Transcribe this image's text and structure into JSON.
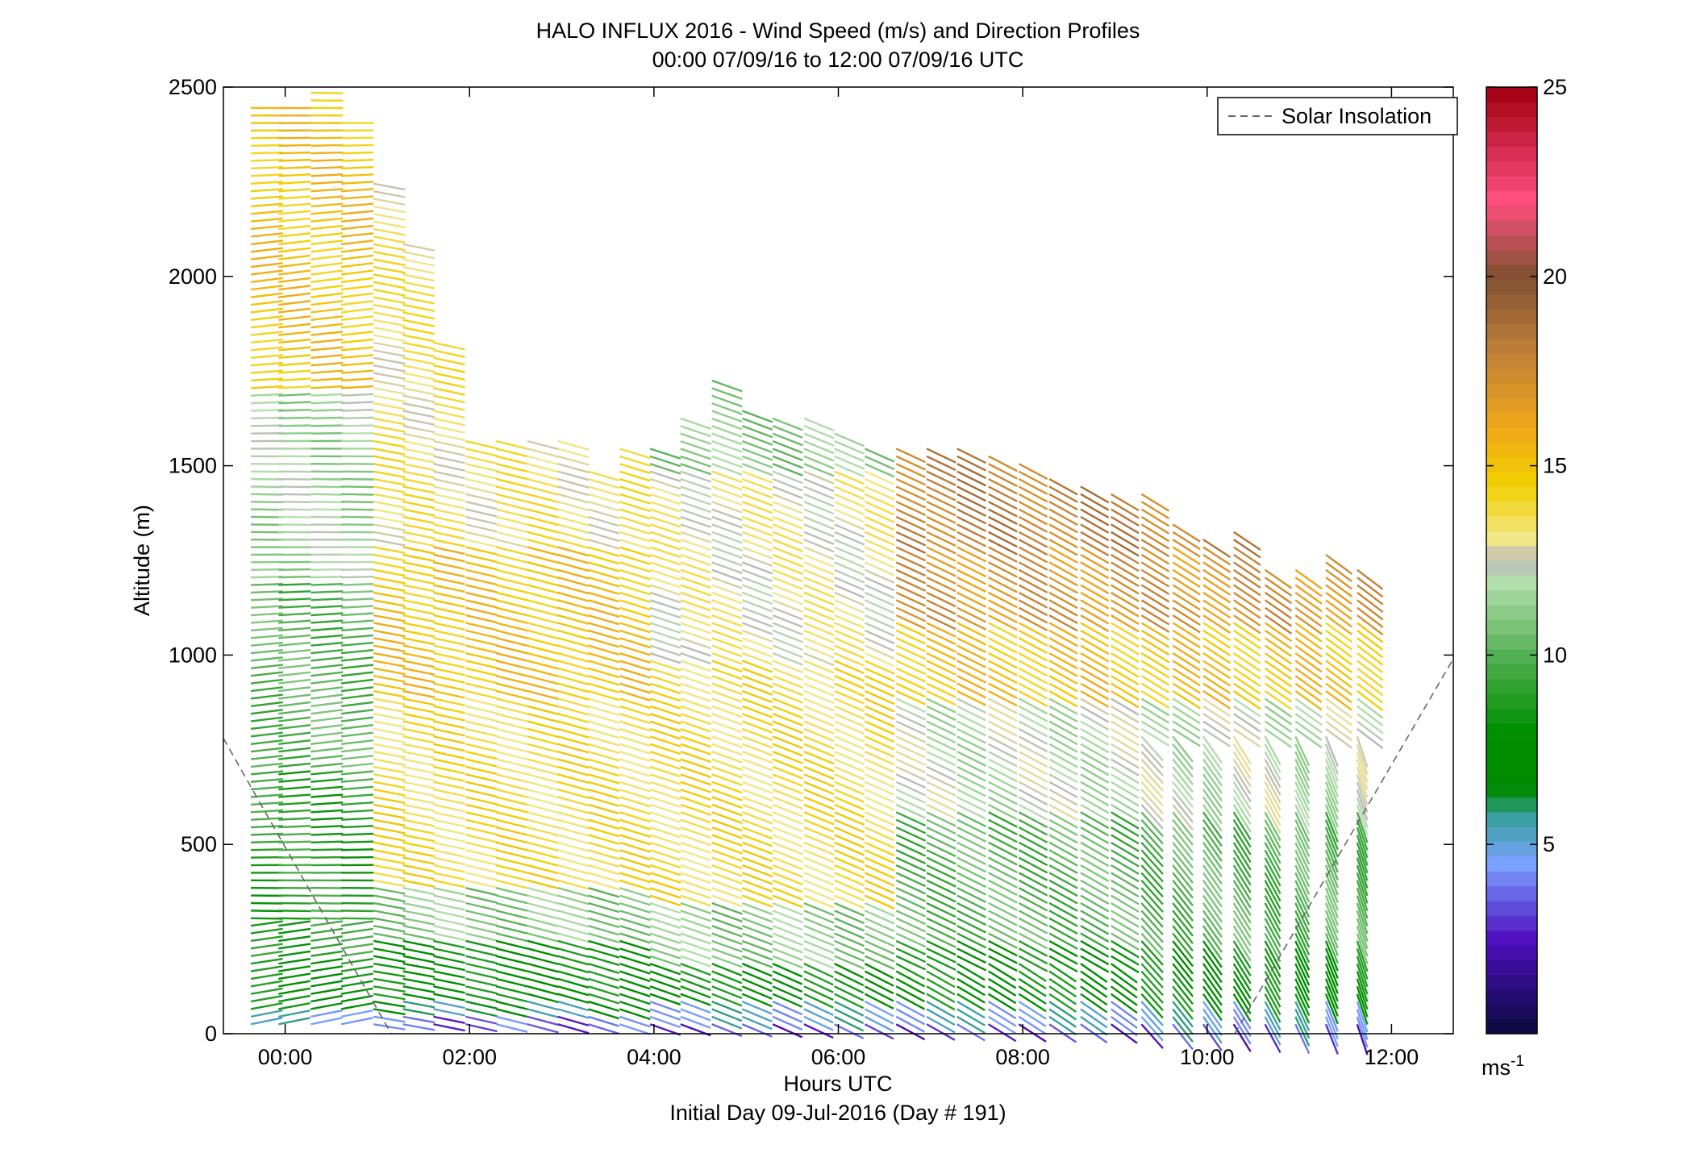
{
  "chart_data": {
    "type": "wind-profile",
    "title": "HALO INFLUX 2016 - Wind Speed (m/s) and Direction Profiles",
    "subtitle": "00:00 07/09/16 to 12:00 07/09/16  UTC",
    "xlabel": "Hours UTC",
    "xlabel2": "Initial Day 09-Jul-2016 (Day # 191)",
    "ylabel": "Altitude (m)",
    "xlim_hours": [
      -0.67,
      12.67
    ],
    "ylim": [
      0,
      2500
    ],
    "x_ticks": [
      {
        "hour": 0,
        "label": "00:00"
      },
      {
        "hour": 2,
        "label": "02:00"
      },
      {
        "hour": 4,
        "label": "04:00"
      },
      {
        "hour": 6,
        "label": "06:00"
      },
      {
        "hour": 8,
        "label": "08:00"
      },
      {
        "hour": 10,
        "label": "10:00"
      },
      {
        "hour": 12,
        "label": "12:00"
      }
    ],
    "y_ticks": [
      {
        "value": 0,
        "label": "0"
      },
      {
        "value": 500,
        "label": "500"
      },
      {
        "value": 1000,
        "label": "1000"
      },
      {
        "value": 1500,
        "label": "1500"
      },
      {
        "value": 2000,
        "label": "2000"
      },
      {
        "value": 2500,
        "label": "2500"
      }
    ],
    "legend": {
      "label": "Solar Insolation",
      "placement": "top-right",
      "line_style": "dashed",
      "color": "#666666"
    },
    "colorbar": {
      "range": [
        0,
        25
      ],
      "ticks": [
        {
          "value": 5,
          "label": "5"
        },
        {
          "value": 10,
          "label": "10"
        },
        {
          "value": 15,
          "label": "15"
        },
        {
          "value": 20,
          "label": "20"
        },
        {
          "value": 25,
          "label": "25"
        }
      ],
      "unit_label": "ms",
      "unit_exponent": "-1",
      "colormap": [
        {
          "v": 0,
          "c": "#0a0a3c"
        },
        {
          "v": 2.5,
          "c": "#5010c0"
        },
        {
          "v": 4.5,
          "c": "#7aa2ff"
        },
        {
          "v": 5.7,
          "c": "#3aa0a0"
        },
        {
          "v": 6.5,
          "c": "#008a00"
        },
        {
          "v": 8,
          "c": "#009000"
        },
        {
          "v": 10,
          "c": "#55b055"
        },
        {
          "v": 12,
          "c": "#b8e0b0"
        },
        {
          "v": 12.5,
          "c": "#b8b8b8"
        },
        {
          "v": 13,
          "c": "#f2e890"
        },
        {
          "v": 14.5,
          "c": "#f2d000"
        },
        {
          "v": 16,
          "c": "#f0a818"
        },
        {
          "v": 18,
          "c": "#c08038"
        },
        {
          "v": 20,
          "c": "#805030"
        },
        {
          "v": 22,
          "c": "#ff5080"
        },
        {
          "v": 25,
          "c": "#a00010"
        }
      ]
    },
    "solar_insolation": [
      {
        "hour": -0.67,
        "alt": 780
      },
      {
        "hour": 1.15,
        "alt": 0
      },
      {
        "hour": 10.3,
        "alt": 0
      },
      {
        "hour": 12.67,
        "alt": 990
      }
    ],
    "profiles": [
      {
        "hour": -0.33,
        "top": 2450
      },
      {
        "hour": -0.03,
        "top": 2450
      },
      {
        "hour": 0.32,
        "top": 2500
      },
      {
        "hour": 0.65,
        "top": 2420
      },
      {
        "hour": 1.0,
        "top": 2260
      },
      {
        "hour": 1.32,
        "top": 2100
      },
      {
        "hour": 1.65,
        "top": 1830
      },
      {
        "hour": 2.0,
        "top": 1580
      },
      {
        "hour": 2.33,
        "top": 1575
      },
      {
        "hour": 2.67,
        "top": 1580
      },
      {
        "hour": 3.0,
        "top": 1580
      },
      {
        "hour": 3.33,
        "top": 1500
      },
      {
        "hour": 3.67,
        "top": 1550
      },
      {
        "hour": 4.0,
        "top": 1545
      },
      {
        "hour": 4.33,
        "top": 1640
      },
      {
        "hour": 4.67,
        "top": 1735
      },
      {
        "hour": 5.0,
        "top": 1650
      },
      {
        "hour": 5.33,
        "top": 1640
      },
      {
        "hour": 5.67,
        "top": 1640
      },
      {
        "hour": 6.0,
        "top": 1600
      },
      {
        "hour": 6.33,
        "top": 1560
      },
      {
        "hour": 6.67,
        "top": 1550
      },
      {
        "hour": 7.0,
        "top": 1550
      },
      {
        "hour": 7.33,
        "top": 1545
      },
      {
        "hour": 7.67,
        "top": 1540
      },
      {
        "hour": 8.0,
        "top": 1520
      },
      {
        "hour": 8.33,
        "top": 1470
      },
      {
        "hour": 8.67,
        "top": 1460
      },
      {
        "hour": 9.0,
        "top": 1440
      },
      {
        "hour": 9.33,
        "top": 1430
      },
      {
        "hour": 9.67,
        "top": 1350
      },
      {
        "hour": 10.0,
        "top": 1310
      },
      {
        "hour": 10.33,
        "top": 1340
      },
      {
        "hour": 10.67,
        "top": 1240
      },
      {
        "hour": 11.0,
        "top": 1230
      },
      {
        "hour": 11.33,
        "top": 1270
      },
      {
        "hour": 11.67,
        "top": 1230
      }
    ],
    "speed_zones": [
      {
        "from_hour": -0.5,
        "to_hour": 0.9,
        "layers": [
          {
            "below": 60,
            "speed": 5
          },
          {
            "below": 200,
            "speed": 8
          },
          {
            "below": 700,
            "speed": 9
          },
          {
            "below": 1200,
            "speed": 10
          },
          {
            "below": 1700,
            "speed": 11.5
          },
          {
            "below": 2600,
            "speed": 15
          }
        ]
      },
      {
        "from_hour": 0.9,
        "to_hour": 4.0,
        "layers": [
          {
            "below": 50,
            "speed": 3.5
          },
          {
            "below": 100,
            "speed": 6
          },
          {
            "below": 250,
            "speed": 8
          },
          {
            "below": 400,
            "speed": 11
          },
          {
            "below": 900,
            "speed": 14
          },
          {
            "below": 1300,
            "speed": 15
          },
          {
            "below": 2600,
            "speed": 13.5
          }
        ]
      },
      {
        "from_hour": 4.0,
        "to_hour": 6.5,
        "layers": [
          {
            "below": 40,
            "speed": 3
          },
          {
            "below": 90,
            "speed": 5
          },
          {
            "below": 200,
            "speed": 8
          },
          {
            "below": 350,
            "speed": 11
          },
          {
            "below": 1000,
            "speed": 14
          },
          {
            "below": 1500,
            "speed": 13
          },
          {
            "below": 2600,
            "speed": 11
          }
        ]
      },
      {
        "from_hour": 6.5,
        "to_hour": 12.0,
        "layers": [
          {
            "below": 40,
            "speed": 3
          },
          {
            "below": 100,
            "speed": 5
          },
          {
            "below": 250,
            "speed": 8
          },
          {
            "below": 600,
            "speed": 10
          },
          {
            "below": 900,
            "speed": 12
          },
          {
            "below": 1100,
            "speed": 15
          },
          {
            "below": 1300,
            "speed": 17
          },
          {
            "below": 2600,
            "speed": 18
          }
        ]
      }
    ],
    "direction_tilt": {
      "low_hours": 0.0,
      "mid_hours": 6.0,
      "late_hours": 11.5
    }
  }
}
